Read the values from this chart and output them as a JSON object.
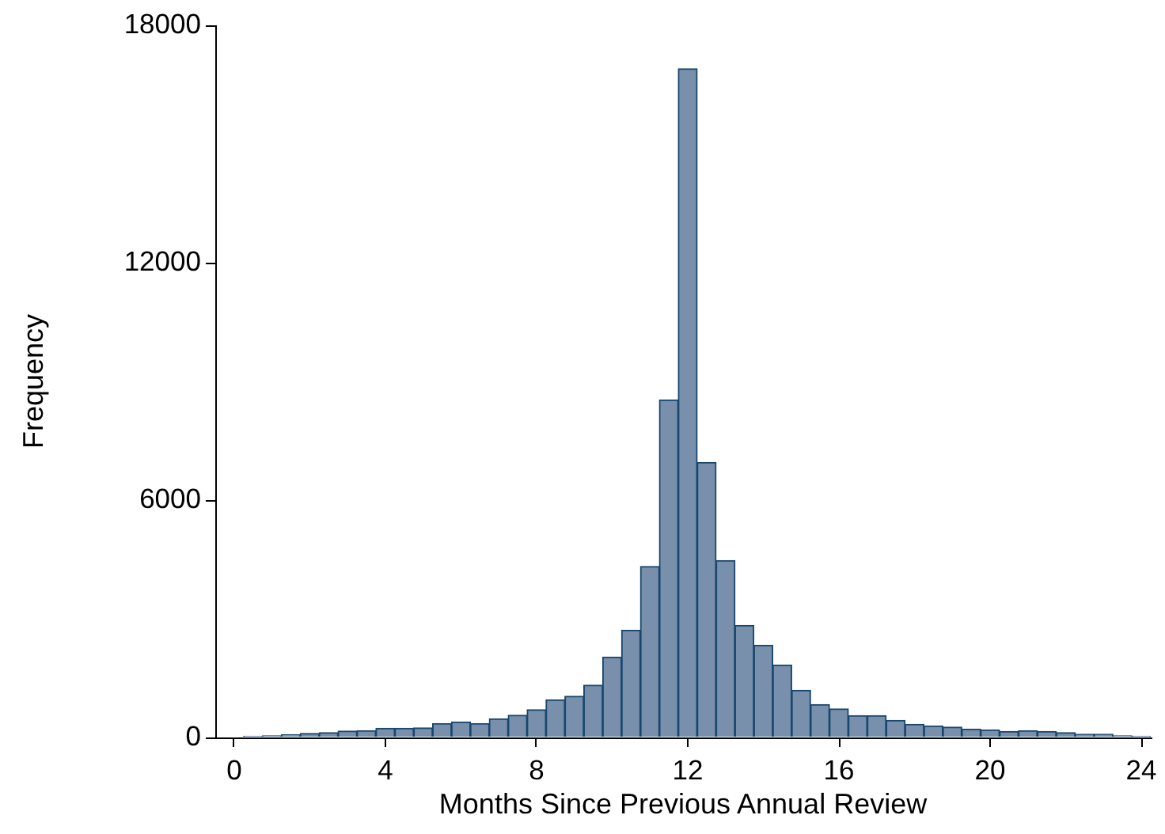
{
  "chart_data": {
    "type": "histogram",
    "xlabel": "Months Since Previous Annual Review",
    "ylabel": "Frequency",
    "bins": [
      0.25,
      0.75,
      1.25,
      1.75,
      2.25,
      2.75,
      3.25,
      3.75,
      4.25,
      4.75,
      5.25,
      5.75,
      6.25,
      6.75,
      7.25,
      7.75,
      8.25,
      8.75,
      9.25,
      9.75,
      10.25,
      10.75,
      11.25,
      11.75,
      12.25,
      12.75,
      13.25,
      13.75,
      14.25,
      14.75,
      15.25,
      15.75,
      16.25,
      16.75,
      17.25,
      17.75,
      18.25,
      18.75,
      19.25,
      19.75,
      20.25,
      20.75,
      21.25,
      21.75,
      22.25,
      22.75,
      23.25,
      23.75,
      24.25
    ],
    "values": [
      30,
      40,
      70,
      100,
      120,
      160,
      170,
      230,
      230,
      240,
      350,
      390,
      350,
      470,
      560,
      700,
      950,
      1040,
      1320,
      2030,
      2710,
      4320,
      8530,
      16900,
      6950,
      4470,
      2830,
      2330,
      1830,
      1190,
      830,
      720,
      550,
      550,
      430,
      330,
      290,
      260,
      210,
      190,
      150,
      170,
      150,
      120,
      80,
      80,
      40,
      30
    ],
    "color": "#7890ab",
    "xlim": [
      -0.5,
      24.25
    ],
    "ylim": [
      0,
      18000
    ],
    "xticks": [
      0,
      4,
      8,
      12,
      16,
      20,
      24
    ],
    "yticks": [
      0,
      6000,
      12000,
      18000
    ],
    "grid": false,
    "legend": false
  }
}
